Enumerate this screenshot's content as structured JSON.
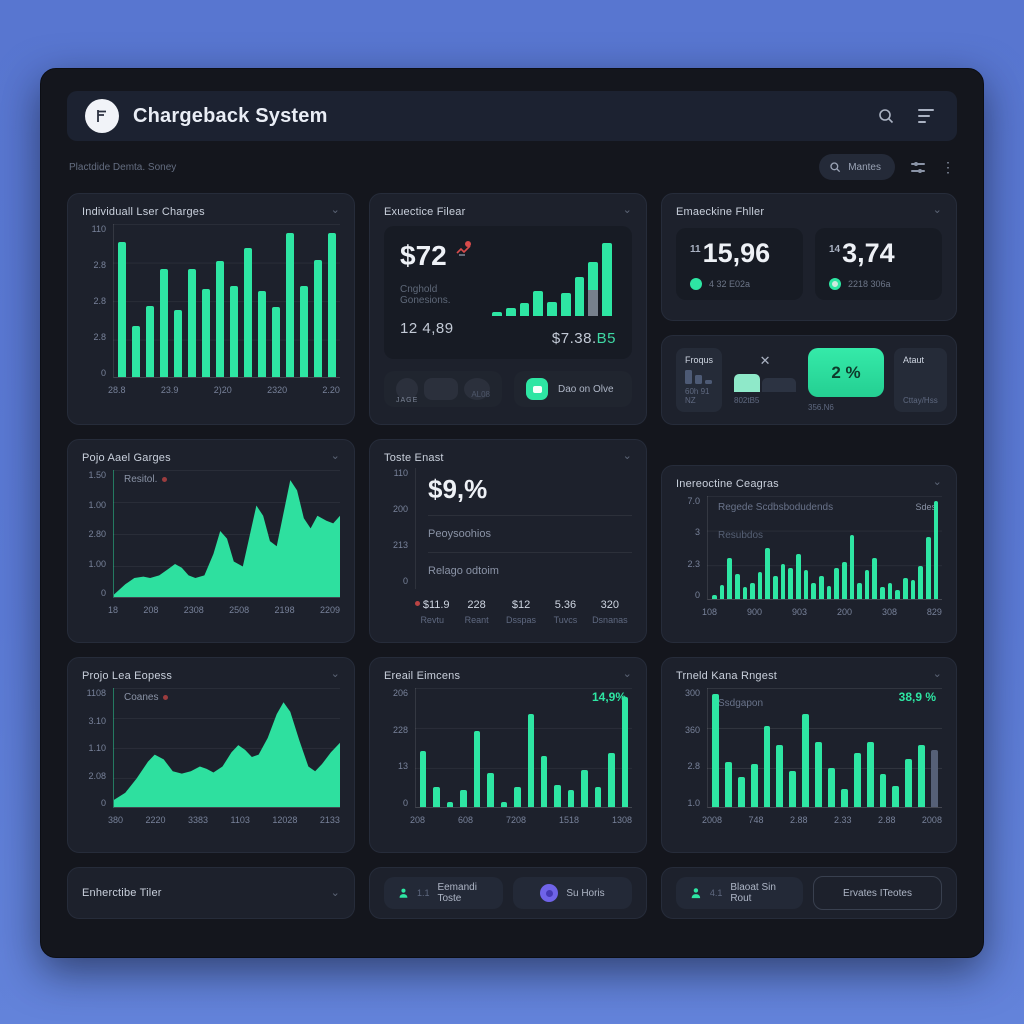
{
  "app": {
    "title": "Chargeback System"
  },
  "icons": {
    "chevron_down": "⌄",
    "kebab": "⋮",
    "close_x": "✕"
  },
  "toolbar": {
    "breadcrumb": "Plactdide Demta. Soney",
    "search_button": "Mantes"
  },
  "cards": {
    "executive_filter": {
      "title": "Exuectice Filear",
      "big_value": "$72",
      "subtitle": "Cnghold Gonesions.",
      "left_value": "12 4,89",
      "right_value": "$7.38.",
      "right_accent": "B5",
      "avatar_pill": {
        "left_caption": "JAGE",
        "right_caption": "AL08"
      },
      "live_button": "Dao on Olve"
    },
    "stats": {
      "title": "Emaeckine Fhller",
      "tiles": [
        {
          "sup": "11",
          "value": "15,96",
          "caption": "4 32 E02a",
          "dot": "filled"
        },
        {
          "sup": "14",
          "value": "3,74",
          "caption": "2218 306a",
          "dot": "ring"
        }
      ]
    },
    "mini": {
      "tiles": [
        {
          "label": "Froqus",
          "caption": "60h 91 NZ",
          "spark": [
            85,
            55,
            28
          ]
        },
        {
          "caption": "802tB5"
        },
        {
          "value": "2 %",
          "caption": "356.N6"
        },
        {
          "label": "Ataut",
          "caption": "Cttay/Hss"
        }
      ]
    },
    "toste": {
      "title": "Toste Enast",
      "y_ticks": [
        "110",
        "200",
        "213",
        "0"
      ],
      "big_value": "$9,%",
      "rows": [
        "Peoysoohios",
        "Relago odtoim"
      ],
      "footer": [
        {
          "value": "$11.9",
          "label": "Revtu"
        },
        {
          "value": "228",
          "label": "Reant"
        },
        {
          "value": "$12",
          "label": "Dsspas"
        },
        {
          "value": "5.36",
          "label": "Tuvcs"
        },
        {
          "value": "320",
          "label": "Dsnanas"
        }
      ]
    },
    "footer_left": {
      "title": "Enherctibe Tiler"
    },
    "footer_mid": {
      "buttons": [
        {
          "badge": "1.1",
          "label": "Eemandi Toste"
        },
        {
          "label": "Su Horis"
        }
      ]
    },
    "footer_right": {
      "buttons": [
        {
          "badge": "4.1",
          "label": "Blaoat Sin Rout"
        },
        {
          "label": "Ervates ITeotes"
        }
      ]
    }
  },
  "chart_data": [
    {
      "type": "bar",
      "title": "Individuall Lser Charges",
      "values": [
        110,
        42,
        58,
        88,
        55,
        88,
        72,
        95,
        74,
        105,
        70,
        57,
        118,
        74,
        96,
        118
      ],
      "ylim": [
        0,
        125
      ],
      "y_ticks": [
        "110",
        "2.8",
        "2.8",
        "2.8",
        "0"
      ],
      "x_ticks": [
        "28.8",
        "23.9",
        "2)20",
        "2320",
        "2.20"
      ],
      "color": "#2ee6a3"
    },
    {
      "type": "bar",
      "title": "mini ascending bars",
      "values": [
        5,
        9,
        14,
        28,
        16,
        26,
        44,
        60,
        82
      ],
      "ylim": [
        0,
        85
      ],
      "split_index": 7,
      "color": "#2ee6a3",
      "split_color": "#77808d"
    },
    {
      "type": "area",
      "title": "Pojo Aael Garges",
      "legend": "Resitol.",
      "points": [
        [
          0,
          2
        ],
        [
          5,
          10
        ],
        [
          9,
          15
        ],
        [
          13,
          16
        ],
        [
          16,
          15
        ],
        [
          20,
          17
        ],
        [
          24,
          22
        ],
        [
          27,
          26
        ],
        [
          30,
          23
        ],
        [
          33,
          17
        ],
        [
          36,
          15
        ],
        [
          40,
          17
        ],
        [
          44,
          34
        ],
        [
          47,
          52
        ],
        [
          50,
          46
        ],
        [
          53,
          28
        ],
        [
          57,
          24
        ],
        [
          60,
          48
        ],
        [
          63,
          72
        ],
        [
          66,
          64
        ],
        [
          69,
          44
        ],
        [
          72,
          40
        ],
        [
          75,
          66
        ],
        [
          78,
          92
        ],
        [
          81,
          84
        ],
        [
          84,
          62
        ],
        [
          87,
          54
        ],
        [
          90,
          64
        ],
        [
          94,
          60
        ],
        [
          97,
          58
        ],
        [
          100,
          64
        ]
      ],
      "y_ticks": [
        "1.50",
        "1.00",
        "2.80",
        "1.00",
        "0"
      ],
      "x_ticks": [
        "18",
        "208",
        "2308",
        "2508",
        "2198",
        "2209"
      ],
      "color": "#2ee6a3"
    },
    {
      "type": "bar",
      "title": "Inereoctine Ceagras",
      "annotation_1": "Regede Scdbsbodudends",
      "annotation_2": "Resubdos",
      "legend_right": "Sdes",
      "values": [
        4,
        14,
        40,
        24,
        12,
        16,
        26,
        50,
        22,
        34,
        30,
        44,
        28,
        16,
        22,
        13,
        30,
        36,
        62,
        16,
        28,
        40,
        12,
        16,
        9,
        20,
        18,
        32,
        60,
        95
      ],
      "ylim": [
        0,
        100
      ],
      "y_ticks": [
        "7.0",
        "3",
        "2.3",
        "0"
      ],
      "x_ticks": [
        "108",
        "900",
        "903",
        "200",
        "308",
        "829"
      ],
      "color": "#2ee6a3"
    },
    {
      "type": "area",
      "title": "Projo Lea Eopess",
      "legend": "Coanes",
      "points": [
        [
          0,
          6
        ],
        [
          5,
          12
        ],
        [
          10,
          24
        ],
        [
          15,
          38
        ],
        [
          18,
          44
        ],
        [
          22,
          40
        ],
        [
          26,
          30
        ],
        [
          30,
          28
        ],
        [
          34,
          30
        ],
        [
          38,
          34
        ],
        [
          41,
          32
        ],
        [
          44,
          29
        ],
        [
          48,
          34
        ],
        [
          52,
          46
        ],
        [
          55,
          52
        ],
        [
          58,
          48
        ],
        [
          61,
          42
        ],
        [
          64,
          44
        ],
        [
          68,
          58
        ],
        [
          72,
          78
        ],
        [
          75,
          88
        ],
        [
          78,
          80
        ],
        [
          82,
          56
        ],
        [
          86,
          34
        ],
        [
          89,
          30
        ],
        [
          92,
          36
        ],
        [
          96,
          46
        ],
        [
          100,
          54
        ]
      ],
      "y_ticks": [
        "1108",
        "3.10",
        "1.10",
        "2.08",
        "0"
      ],
      "x_ticks": [
        "380",
        "2220",
        "3383",
        "1103",
        "12028",
        "2133"
      ],
      "color": "#2ee6a3"
    },
    {
      "type": "bar",
      "title": "Ereail Eimcens",
      "badge": "14,9%",
      "values": [
        33,
        12,
        3,
        10,
        45,
        20,
        3,
        12,
        55,
        30,
        13,
        10,
        22,
        12,
        32,
        65
      ],
      "ylim": [
        0,
        70
      ],
      "y_ticks": [
        "206",
        "228",
        "13",
        "0"
      ],
      "x_ticks": [
        "208",
        "608",
        "7208",
        "1518",
        "1308"
      ],
      "color": "#2ee6a3"
    },
    {
      "type": "bar",
      "title": "Trneld Kana Rngest",
      "legend": "Ssdgapon",
      "badge": "38,9 %",
      "values": [
        95,
        38,
        25,
        36,
        68,
        52,
        30,
        78,
        55,
        33,
        15,
        45,
        55,
        28,
        18,
        40,
        52,
        48
      ],
      "ylim": [
        0,
        100
      ],
      "gray_last": true,
      "gray_color": "#566077",
      "y_ticks": [
        "300",
        "360",
        "2.8",
        "1.0"
      ],
      "x_ticks": [
        "2008",
        "748",
        "2.88",
        "2.33",
        "2.88",
        "2008"
      ],
      "color": "#2ee6a3"
    }
  ]
}
